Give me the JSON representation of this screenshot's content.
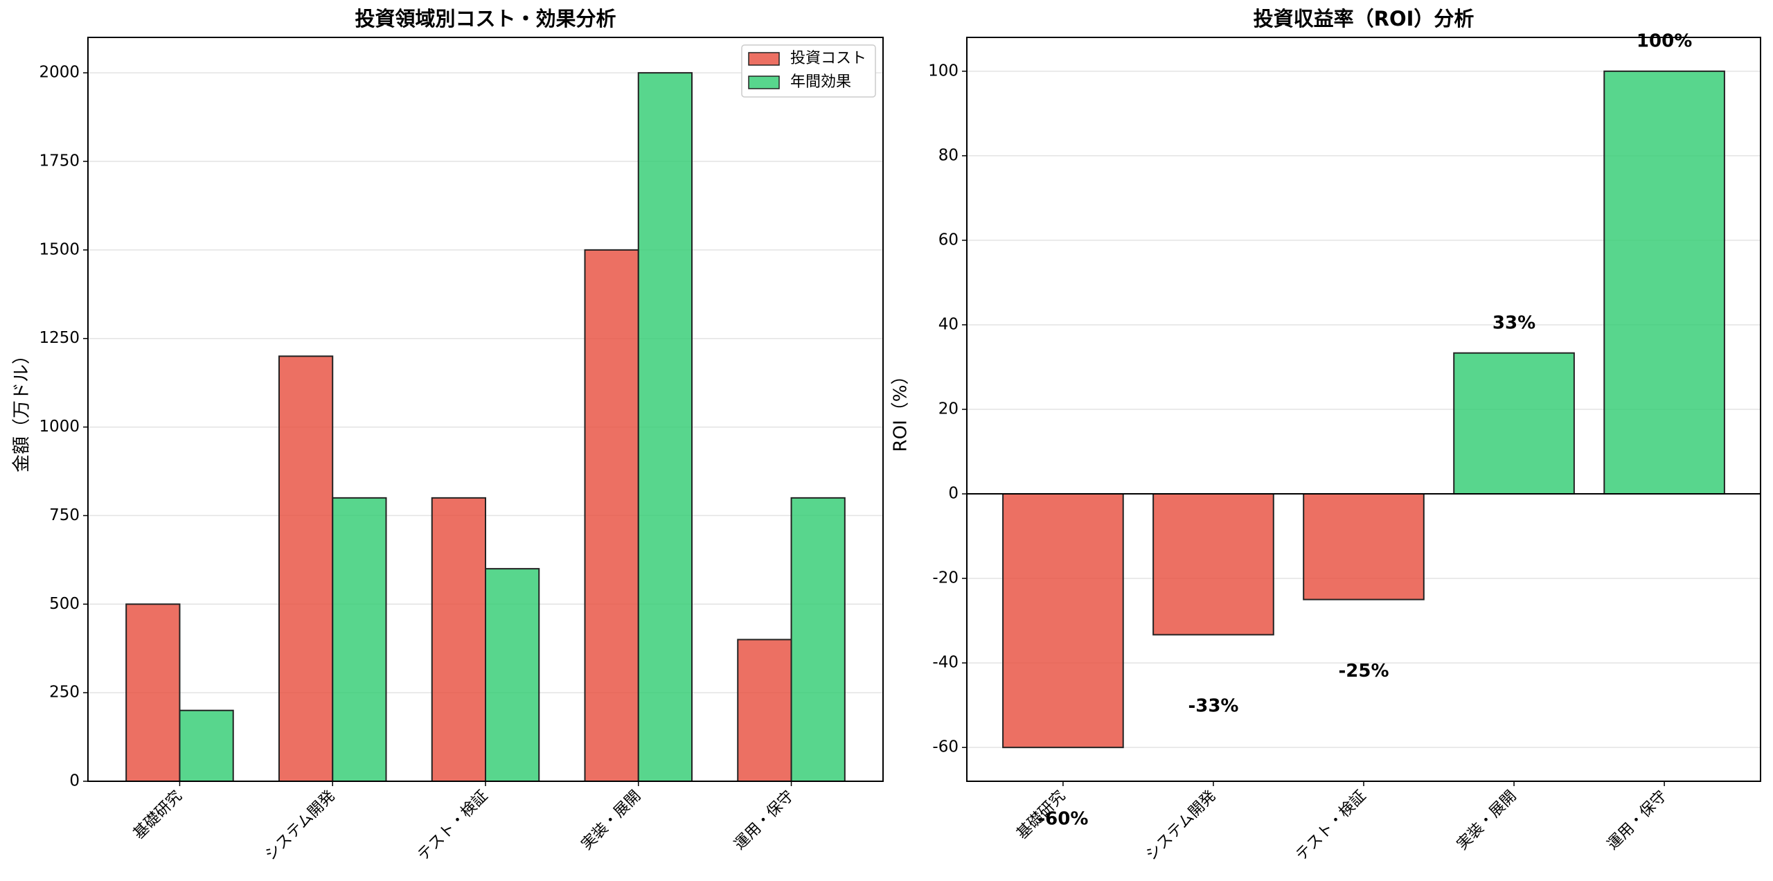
{
  "chart_data": [
    {
      "type": "grouped-bar",
      "title": "投資領域別コスト・効果分析",
      "y_label": "金額（万ドル）",
      "categories": [
        "基礎研究",
        "システム開発",
        "テスト・検証",
        "実装・展開",
        "運用・保守"
      ],
      "series": [
        {
          "name": "投資コスト",
          "color": "#e74c3c",
          "values": [
            500,
            1200,
            800,
            1500,
            400
          ]
        },
        {
          "name": "年間効果",
          "color": "#2ecc71",
          "values": [
            200,
            800,
            600,
            2000,
            800
          ]
        }
      ],
      "ylim": [
        0,
        2100
      ],
      "yticks": [
        0,
        250,
        500,
        750,
        1000,
        1250,
        1500,
        1750,
        2000
      ],
      "grid": true,
      "legend": "upper right"
    },
    {
      "type": "bar",
      "title": "投資収益率（ROI）分析",
      "y_label": "ROI（%）",
      "categories": [
        "基礎研究",
        "システム開発",
        "テスト・検証",
        "実装・展開",
        "運用・保守"
      ],
      "values": [
        -60,
        -33.33,
        -25,
        33.33,
        100
      ],
      "value_labels": [
        "-60%",
        "-33%",
        "-25%",
        "33%",
        "100%"
      ],
      "colors": [
        "#e74c3c",
        "#e74c3c",
        "#e74c3c",
        "#2ecc71",
        "#2ecc71"
      ],
      "ylim": [
        -68,
        108
      ],
      "yticks": [
        -60,
        -40,
        -20,
        0,
        20,
        40,
        60,
        80,
        100
      ],
      "grid": true
    }
  ]
}
